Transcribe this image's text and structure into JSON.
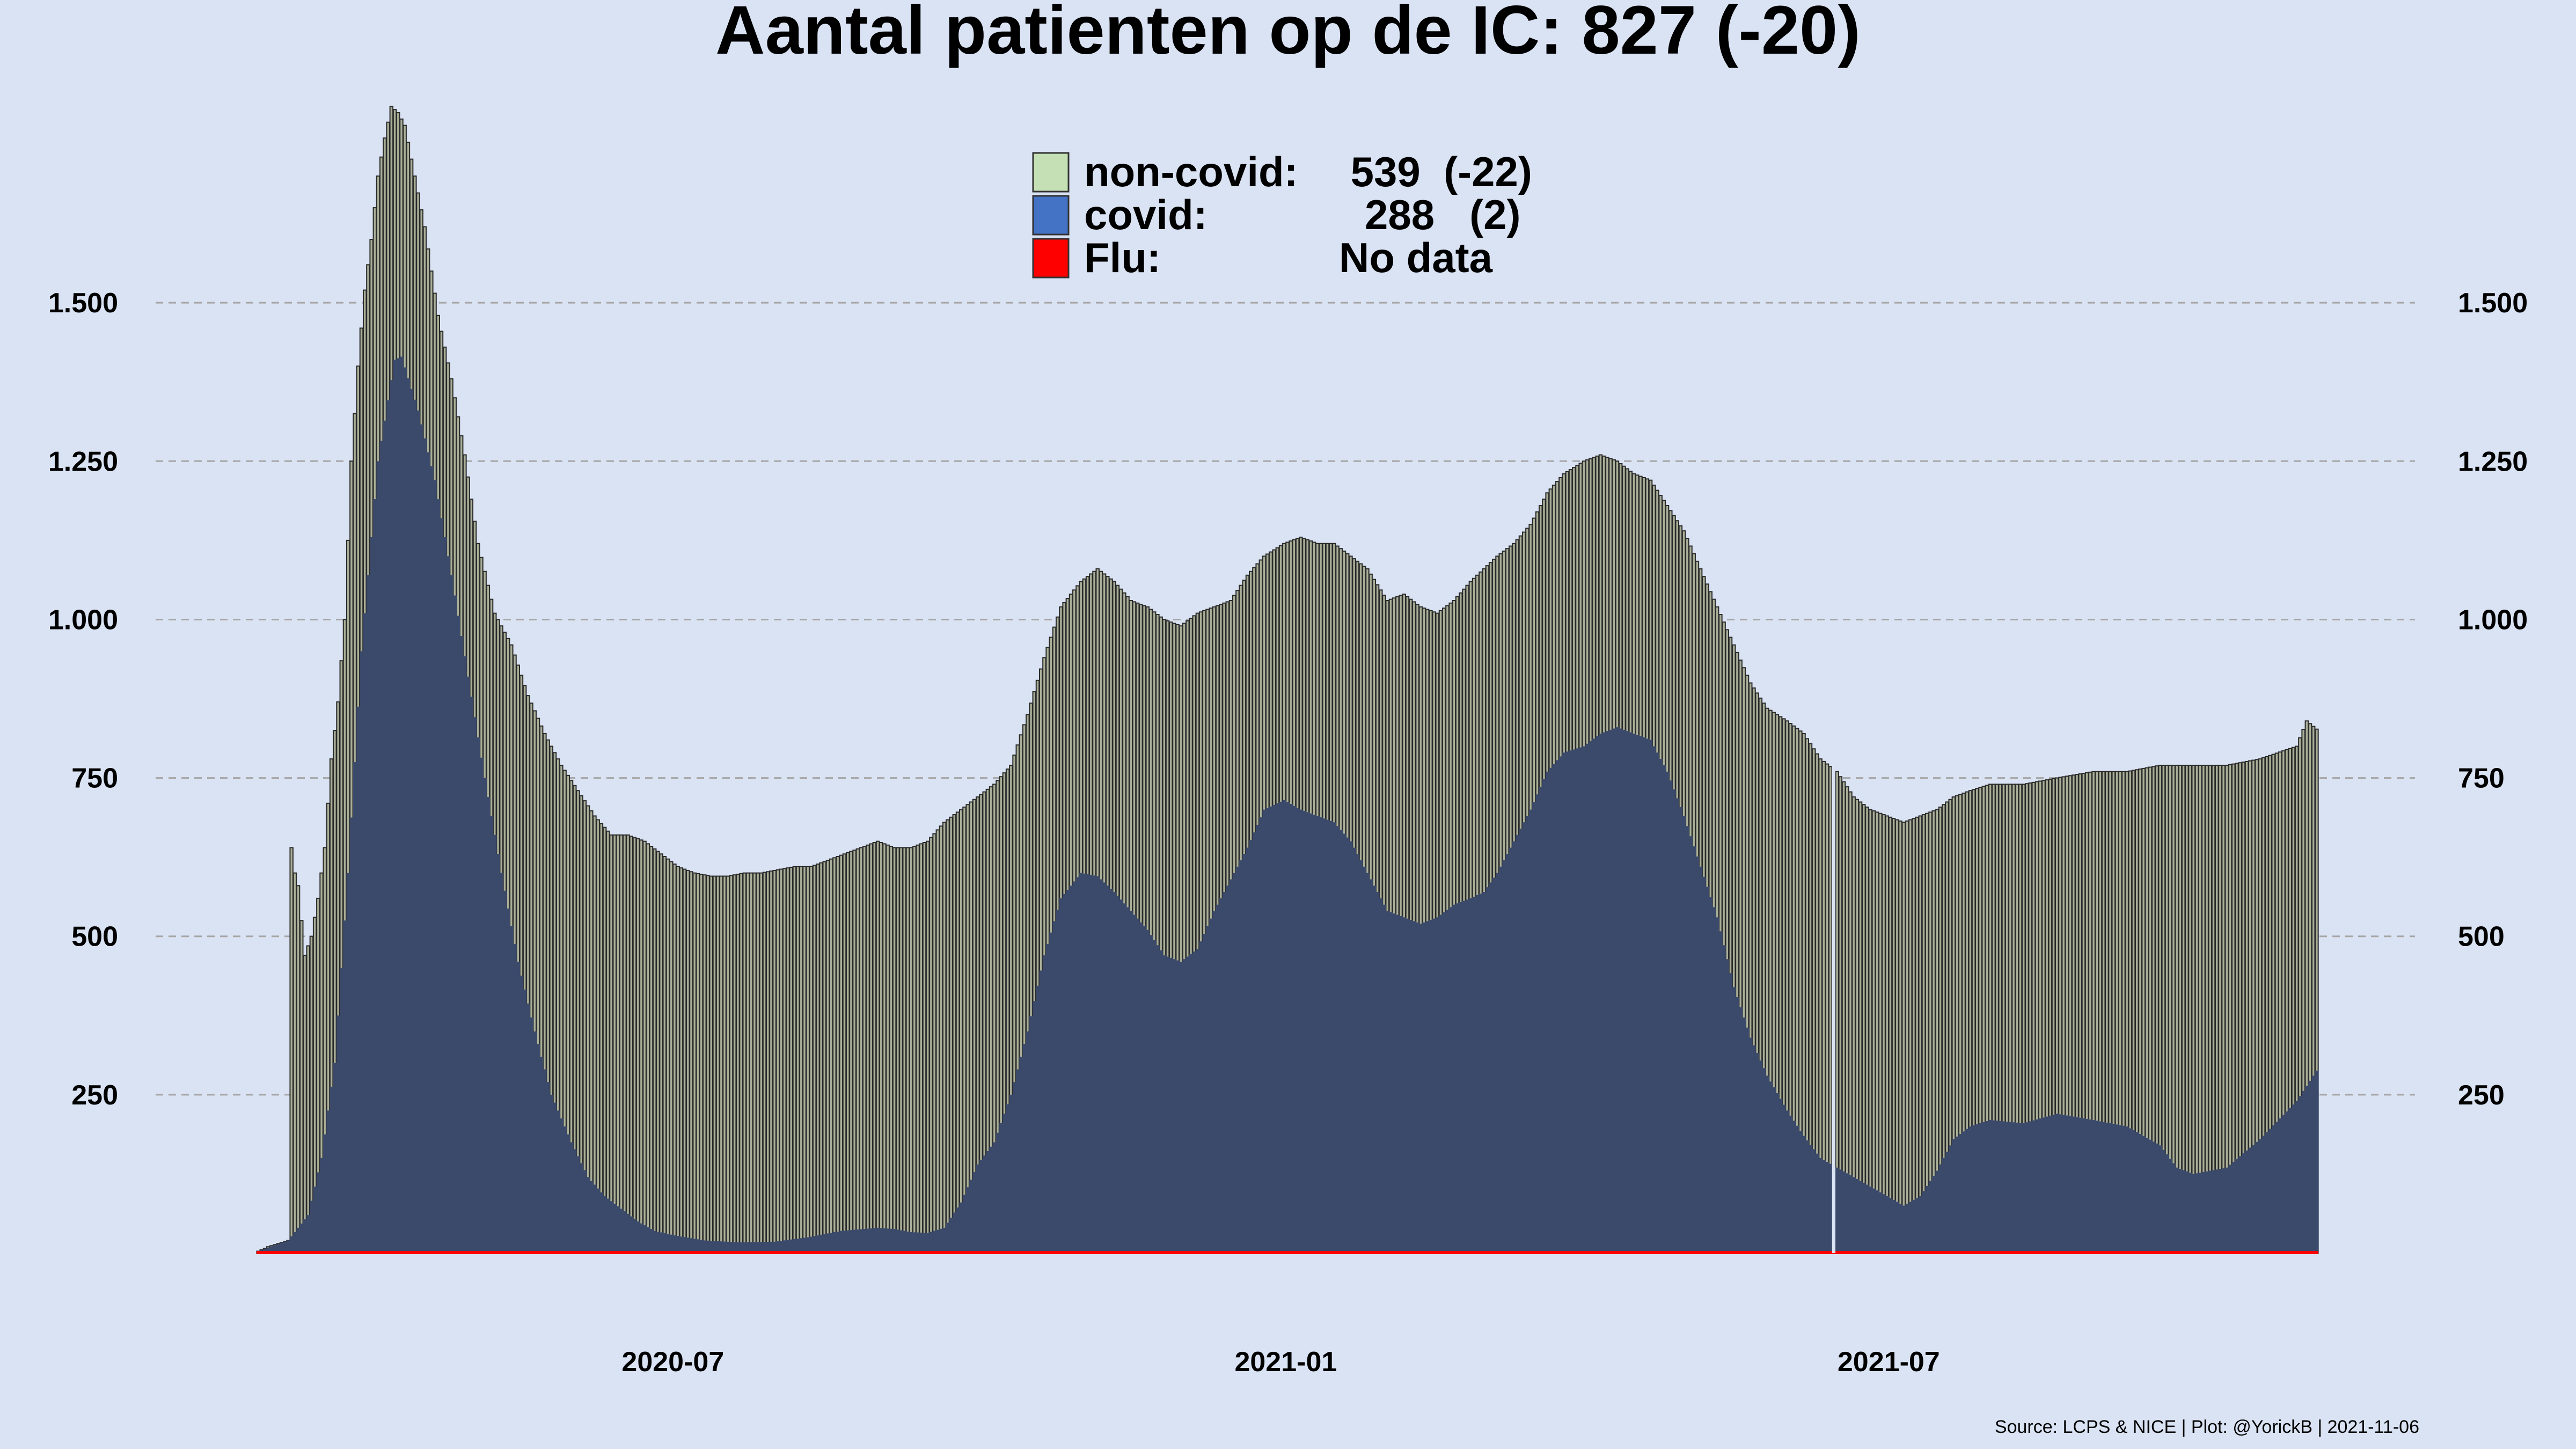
{
  "chart_data": {
    "type": "bar",
    "title": "Aantal patienten op de IC: 827  (-20)",
    "legend": {
      "placement": "top-center",
      "entries": [
        {
          "label": "non-covid:",
          "value": " 539  (-22)",
          "color": "#c5e0b4"
        },
        {
          "label": "covid:",
          "value": "288   (2)",
          "color": "#4472c4"
        },
        {
          "label": "Flu:",
          "value": "No data",
          "color": "#ff0000"
        }
      ]
    },
    "colors": {
      "background": "#dae3f3",
      "non_covid_bar": "#a9af98",
      "non_covid_edge": "#2a2a2a",
      "covid_area": "#3b4a6b",
      "flu_line": "#ff0000",
      "grid": "#a6a6a6"
    },
    "x_range": [
      "2020-02-27",
      "2021-11-06"
    ],
    "x_ticks": [
      {
        "date": "2020-07-01",
        "label": "2020-07"
      },
      {
        "date": "2021-01-01",
        "label": "2021-01"
      },
      {
        "date": "2021-07-01",
        "label": "2021-07"
      }
    ],
    "y_range": [
      0,
      1800
    ],
    "y_ticks": [
      {
        "value": 250,
        "label": "250"
      },
      {
        "value": 500,
        "label": "500"
      },
      {
        "value": 750,
        "label": "750"
      },
      {
        "value": 1000,
        "label": "1.000"
      },
      {
        "value": 1250,
        "label": "1.250"
      },
      {
        "value": 1500,
        "label": "1.500"
      }
    ],
    "grid": "horizontal dashed",
    "gap_dates": [
      "2021-06-14"
    ],
    "series": [
      {
        "name": "covid",
        "points": [
          [
            "2020-02-27",
            3
          ],
          [
            "2020-03-07",
            20
          ],
          [
            "2020-03-13",
            60
          ],
          [
            "2020-03-17",
            150
          ],
          [
            "2020-03-21",
            300
          ],
          [
            "2020-03-25",
            600
          ],
          [
            "2020-03-29",
            950
          ],
          [
            "2020-04-03",
            1250
          ],
          [
            "2020-04-08",
            1410
          ],
          [
            "2020-04-10",
            1415
          ],
          [
            "2020-04-15",
            1330
          ],
          [
            "2020-04-20",
            1220
          ],
          [
            "2020-04-25",
            1070
          ],
          [
            "2020-04-30",
            910
          ],
          [
            "2020-05-05",
            750
          ],
          [
            "2020-05-10",
            600
          ],
          [
            "2020-05-15",
            460
          ],
          [
            "2020-05-20",
            350
          ],
          [
            "2020-05-25",
            250
          ],
          [
            "2020-05-31",
            175
          ],
          [
            "2020-06-05",
            120
          ],
          [
            "2020-06-10",
            90
          ],
          [
            "2020-06-15",
            70
          ],
          [
            "2020-06-20",
            50
          ],
          [
            "2020-06-25",
            35
          ],
          [
            "2020-07-01",
            28
          ],
          [
            "2020-07-10",
            20
          ],
          [
            "2020-07-20",
            17
          ],
          [
            "2020-07-31",
            18
          ],
          [
            "2020-08-10",
            25
          ],
          [
            "2020-08-20",
            35
          ],
          [
            "2020-08-31",
            40
          ],
          [
            "2020-09-05",
            38
          ],
          [
            "2020-09-10",
            33
          ],
          [
            "2020-09-15",
            32
          ],
          [
            "2020-09-20",
            40
          ],
          [
            "2020-09-25",
            80
          ],
          [
            "2020-09-30",
            140
          ],
          [
            "2020-10-05",
            175
          ],
          [
            "2020-10-10",
            250
          ],
          [
            "2020-10-15",
            350
          ],
          [
            "2020-10-20",
            470
          ],
          [
            "2020-10-25",
            560
          ],
          [
            "2020-10-31",
            600
          ],
          [
            "2020-11-05",
            595
          ],
          [
            "2020-11-10",
            570
          ],
          [
            "2020-11-15",
            540
          ],
          [
            "2020-11-20",
            510
          ],
          [
            "2020-11-25",
            470
          ],
          [
            "2020-11-30",
            460
          ],
          [
            "2020-12-05",
            480
          ],
          [
            "2020-12-10",
            540
          ],
          [
            "2020-12-15",
            590
          ],
          [
            "2020-12-20",
            640
          ],
          [
            "2020-12-25",
            700
          ],
          [
            "2020-12-31",
            715
          ],
          [
            "2021-01-05",
            700
          ],
          [
            "2021-01-10",
            690
          ],
          [
            "2021-01-15",
            680
          ],
          [
            "2021-01-20",
            650
          ],
          [
            "2021-01-25",
            600
          ],
          [
            "2021-01-31",
            540
          ],
          [
            "2021-02-05",
            530
          ],
          [
            "2021-02-10",
            520
          ],
          [
            "2021-02-15",
            530
          ],
          [
            "2021-02-20",
            550
          ],
          [
            "2021-02-25",
            560
          ],
          [
            "2021-03-01",
            570
          ],
          [
            "2021-03-05",
            600
          ],
          [
            "2021-03-10",
            650
          ],
          [
            "2021-03-15",
            700
          ],
          [
            "2021-03-20",
            760
          ],
          [
            "2021-03-25",
            790
          ],
          [
            "2021-03-31",
            800
          ],
          [
            "2021-04-05",
            820
          ],
          [
            "2021-04-10",
            830
          ],
          [
            "2021-04-15",
            820
          ],
          [
            "2021-04-20",
            810
          ],
          [
            "2021-04-25",
            760
          ],
          [
            "2021-04-30",
            690
          ],
          [
            "2021-05-05",
            610
          ],
          [
            "2021-05-10",
            530
          ],
          [
            "2021-05-15",
            420
          ],
          [
            "2021-05-20",
            340
          ],
          [
            "2021-05-25",
            280
          ],
          [
            "2021-05-31",
            225
          ],
          [
            "2021-06-05",
            185
          ],
          [
            "2021-06-10",
            150
          ],
          [
            "2021-06-20",
            120
          ],
          [
            "2021-06-30",
            90
          ],
          [
            "2021-07-05",
            75
          ],
          [
            "2021-07-10",
            90
          ],
          [
            "2021-07-15",
            130
          ],
          [
            "2021-07-20",
            180
          ],
          [
            "2021-07-25",
            200
          ],
          [
            "2021-07-31",
            210
          ],
          [
            "2021-08-10",
            205
          ],
          [
            "2021-08-20",
            220
          ],
          [
            "2021-08-31",
            210
          ],
          [
            "2021-09-10",
            200
          ],
          [
            "2021-09-20",
            170
          ],
          [
            "2021-09-25",
            135
          ],
          [
            "2021-09-30",
            125
          ],
          [
            "2021-10-10",
            135
          ],
          [
            "2021-10-20",
            180
          ],
          [
            "2021-10-31",
            240
          ],
          [
            "2021-11-06",
            288
          ]
        ]
      },
      {
        "name": "non-covid",
        "points": [
          [
            "2020-02-27",
            3
          ],
          [
            "2020-03-01",
            10
          ],
          [
            "2020-03-07",
            20
          ],
          [
            "2020-03-08",
            640
          ],
          [
            "2020-03-09",
            600
          ],
          [
            "2020-03-10",
            580
          ],
          [
            "2020-03-12",
            470
          ],
          [
            "2020-03-14",
            500
          ],
          [
            "2020-03-16",
            560
          ],
          [
            "2020-03-18",
            640
          ],
          [
            "2020-03-20",
            780
          ],
          [
            "2020-03-22",
            870
          ],
          [
            "2020-03-24",
            1000
          ],
          [
            "2020-03-26",
            1250
          ],
          [
            "2020-03-28",
            1400
          ],
          [
            "2020-03-30",
            1520
          ],
          [
            "2020-04-01",
            1600
          ],
          [
            "2020-04-03",
            1700
          ],
          [
            "2020-04-05",
            1760
          ],
          [
            "2020-04-07",
            1810
          ],
          [
            "2020-04-09",
            1800
          ],
          [
            "2020-04-11",
            1780
          ],
          [
            "2020-04-14",
            1700
          ],
          [
            "2020-04-17",
            1620
          ],
          [
            "2020-04-21",
            1480
          ],
          [
            "2020-04-25",
            1380
          ],
          [
            "2020-04-29",
            1260
          ],
          [
            "2020-05-03",
            1120
          ],
          [
            "2020-05-08",
            1010
          ],
          [
            "2020-05-13",
            960
          ],
          [
            "2020-05-18",
            880
          ],
          [
            "2020-05-23",
            820
          ],
          [
            "2020-05-28",
            770
          ],
          [
            "2020-06-02",
            730
          ],
          [
            "2020-06-07",
            690
          ],
          [
            "2020-06-12",
            660
          ],
          [
            "2020-06-17",
            660
          ],
          [
            "2020-06-22",
            650
          ],
          [
            "2020-06-27",
            630
          ],
          [
            "2020-07-02",
            610
          ],
          [
            "2020-07-07",
            600
          ],
          [
            "2020-07-12",
            595
          ],
          [
            "2020-07-17",
            595
          ],
          [
            "2020-07-22",
            600
          ],
          [
            "2020-07-27",
            600
          ],
          [
            "2020-08-01",
            605
          ],
          [
            "2020-08-06",
            610
          ],
          [
            "2020-08-11",
            610
          ],
          [
            "2020-08-16",
            620
          ],
          [
            "2020-08-21",
            630
          ],
          [
            "2020-08-26",
            640
          ],
          [
            "2020-08-31",
            650
          ],
          [
            "2020-09-05",
            640
          ],
          [
            "2020-09-10",
            640
          ],
          [
            "2020-09-15",
            650
          ],
          [
            "2020-09-20",
            680
          ],
          [
            "2020-09-25",
            700
          ],
          [
            "2020-09-30",
            720
          ],
          [
            "2020-10-05",
            740
          ],
          [
            "2020-10-10",
            770
          ],
          [
            "2020-10-15",
            850
          ],
          [
            "2020-10-20",
            940
          ],
          [
            "2020-10-25",
            1020
          ],
          [
            "2020-10-31",
            1060
          ],
          [
            "2020-11-05",
            1080
          ],
          [
            "2020-11-10",
            1060
          ],
          [
            "2020-11-15",
            1030
          ],
          [
            "2020-11-20",
            1020
          ],
          [
            "2020-11-25",
            1000
          ],
          [
            "2020-11-30",
            990
          ],
          [
            "2020-12-05",
            1010
          ],
          [
            "2020-12-10",
            1020
          ],
          [
            "2020-12-15",
            1030
          ],
          [
            "2020-12-20",
            1070
          ],
          [
            "2020-12-25",
            1100
          ],
          [
            "2020-12-31",
            1120
          ],
          [
            "2021-01-05",
            1130
          ],
          [
            "2021-01-10",
            1120
          ],
          [
            "2021-01-15",
            1120
          ],
          [
            "2021-01-20",
            1100
          ],
          [
            "2021-01-25",
            1080
          ],
          [
            "2021-01-31",
            1030
          ],
          [
            "2021-02-05",
            1040
          ],
          [
            "2021-02-10",
            1020
          ],
          [
            "2021-02-15",
            1010
          ],
          [
            "2021-02-20",
            1030
          ],
          [
            "2021-02-25",
            1060
          ],
          [
            "2021-03-01",
            1080
          ],
          [
            "2021-03-05",
            1100
          ],
          [
            "2021-03-10",
            1120
          ],
          [
            "2021-03-15",
            1150
          ],
          [
            "2021-03-20",
            1200
          ],
          [
            "2021-03-25",
            1230
          ],
          [
            "2021-03-31",
            1250
          ],
          [
            "2021-04-05",
            1260
          ],
          [
            "2021-04-10",
            1250
          ],
          [
            "2021-04-15",
            1230
          ],
          [
            "2021-04-20",
            1220
          ],
          [
            "2021-04-25",
            1180
          ],
          [
            "2021-04-30",
            1140
          ],
          [
            "2021-05-05",
            1080
          ],
          [
            "2021-05-10",
            1020
          ],
          [
            "2021-05-15",
            960
          ],
          [
            "2021-05-20",
            900
          ],
          [
            "2021-05-25",
            860
          ],
          [
            "2021-05-31",
            840
          ],
          [
            "2021-06-05",
            820
          ],
          [
            "2021-06-10",
            780
          ],
          [
            "2021-06-15",
            760
          ],
          [
            "2021-06-20",
            720
          ],
          [
            "2021-06-25",
            700
          ],
          [
            "2021-06-30",
            690
          ],
          [
            "2021-07-05",
            680
          ],
          [
            "2021-07-10",
            690
          ],
          [
            "2021-07-15",
            700
          ],
          [
            "2021-07-20",
            720
          ],
          [
            "2021-07-25",
            730
          ],
          [
            "2021-07-31",
            740
          ],
          [
            "2021-08-10",
            740
          ],
          [
            "2021-08-20",
            750
          ],
          [
            "2021-08-31",
            760
          ],
          [
            "2021-09-10",
            760
          ],
          [
            "2021-09-20",
            770
          ],
          [
            "2021-09-30",
            770
          ],
          [
            "2021-10-10",
            770
          ],
          [
            "2021-10-20",
            780
          ],
          [
            "2021-10-31",
            800
          ],
          [
            "2021-11-03",
            840
          ],
          [
            "2021-11-06",
            827
          ]
        ]
      }
    ],
    "source": "Source: LCPS & NICE | Plot: @YorickB |  2021-11-06"
  }
}
